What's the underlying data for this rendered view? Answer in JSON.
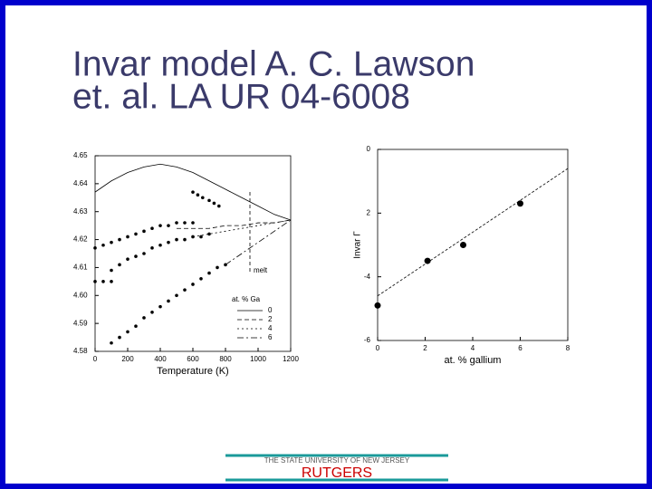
{
  "title_lines": [
    "Invar model A. C. Lawson",
    "et. al. LA UR 04-6008"
  ],
  "footer": {
    "university": "THE STATE UNIVERSITY OF NEW JERSEY",
    "name": "RUTGERS"
  },
  "chart_data": [
    {
      "type": "line",
      "xlabel": "Temperature (K)",
      "xlim": [
        0,
        1200
      ],
      "xticks": [
        0,
        200,
        400,
        600,
        800,
        1000,
        1200
      ],
      "ylim": [
        4.58,
        4.65
      ],
      "yticks": [
        4.58,
        {
          "value": 4.59,
          "label": "4.59"
        },
        {
          "value": 4.6,
          "label": "4.60"
        },
        4.61,
        4.62,
        4.63,
        4.64,
        4.65
      ],
      "x": [
        0,
        100,
        200,
        300,
        400,
        500,
        600,
        700,
        800,
        900,
        1000,
        1100,
        1200
      ],
      "legend_title": "at. % Ga",
      "annotation": "melt",
      "series": [
        {
          "name": "0",
          "dash": "none",
          "values": [
            4.637,
            4.641,
            4.644,
            4.646,
            4.647,
            4.646,
            4.644,
            4.641,
            4.638,
            4.635,
            4.632,
            4.629,
            4.627
          ]
        },
        {
          "name": "2",
          "dash": "5,3",
          "values": [
            null,
            null,
            null,
            null,
            null,
            4.624,
            4.624,
            4.624,
            4.625,
            4.625,
            4.626,
            4.626,
            4.627
          ]
        },
        {
          "name": "4",
          "dash": "2,3",
          "values": [
            null,
            null,
            null,
            null,
            null,
            null,
            4.621,
            4.622,
            4.623,
            4.624,
            4.625,
            4.626,
            4.627
          ]
        },
        {
          "name": "6",
          "dash": "7,3,2,3",
          "values": [
            null,
            null,
            null,
            null,
            null,
            null,
            null,
            null,
            4.611,
            4.615,
            4.619,
            4.623,
            4.627
          ]
        }
      ],
      "data_points": [
        {
          "x": [
            600,
            630,
            660,
            700,
            730,
            760
          ],
          "y": [
            4.637,
            4.636,
            4.635,
            4.634,
            4.633,
            4.632
          ]
        },
        {
          "x": [
            0,
            50,
            100,
            150,
            200,
            250,
            300,
            350,
            400,
            450,
            500,
            550,
            600
          ],
          "y": [
            4.617,
            4.618,
            4.619,
            4.62,
            4.621,
            4.622,
            4.623,
            4.624,
            4.625,
            4.625,
            4.626,
            4.626,
            4.626
          ]
        },
        {
          "x": [
            100,
            150,
            200,
            250,
            300,
            350,
            400,
            450,
            500,
            550,
            600,
            650,
            700
          ],
          "y": [
            4.609,
            4.611,
            4.613,
            4.614,
            4.615,
            4.617,
            4.618,
            4.619,
            4.62,
            4.62,
            4.621,
            4.621,
            4.622
          ]
        },
        {
          "x": [
            0,
            50,
            100
          ],
          "y": [
            4.605,
            4.605,
            4.605
          ]
        },
        {
          "x": [
            100,
            150,
            200,
            250,
            300,
            350,
            400,
            450,
            500,
            550,
            600,
            650,
            700,
            750,
            800
          ],
          "y": [
            4.583,
            4.585,
            4.587,
            4.589,
            4.592,
            4.594,
            4.596,
            4.598,
            4.6,
            4.602,
            4.604,
            4.606,
            4.608,
            4.61,
            4.611
          ]
        }
      ]
    },
    {
      "type": "scatter",
      "xlabel": "at. % gallium",
      "ylabel": "Invar Γ",
      "xlim": [
        0,
        8
      ],
      "xticks": [
        0,
        2,
        4,
        6,
        8
      ],
      "ylim": [
        -6,
        0
      ],
      "yticks": [
        0,
        {
          "value": -2,
          "label": "2"
        },
        -4,
        -6
      ],
      "x": [
        0,
        2.1,
        3.6,
        6
      ],
      "values": [
        -4.9,
        -3.5,
        -3.0,
        -1.7
      ],
      "fit": {
        "x": [
          0,
          8
        ],
        "y": [
          -4.6,
          -0.6
        ]
      }
    }
  ]
}
